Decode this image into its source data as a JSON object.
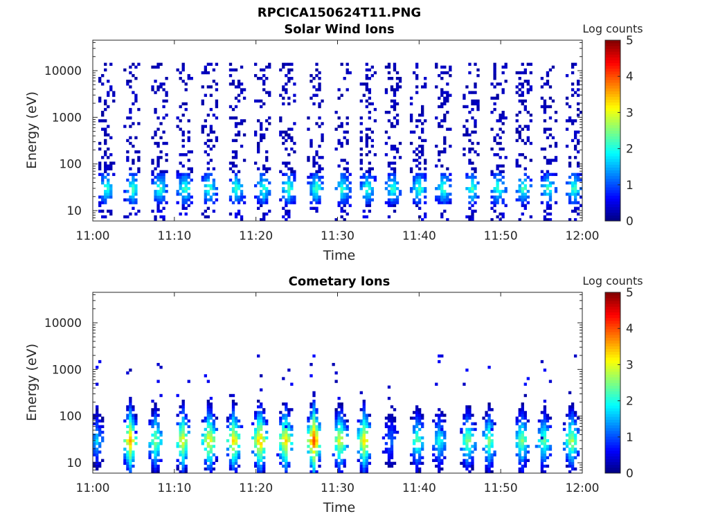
{
  "figure_title": "RPCICA150624T11.PNG",
  "chart_data": [
    {
      "type": "heatmap",
      "title": "Solar Wind Ions",
      "xlabel": "Time",
      "ylabel": "Energy (eV)",
      "x_tick_labels": [
        "11:00",
        "11:10",
        "11:20",
        "11:30",
        "11:40",
        "11:50",
        "12:00"
      ],
      "x_range_minutes": [
        0,
        60
      ],
      "y_scale": "log",
      "y_tick_values": [
        10,
        100,
        1000,
        10000
      ],
      "y_tick_labels": [
        "10",
        "100",
        "1000",
        "10000"
      ],
      "y_range_eV": [
        6,
        45000
      ],
      "colorbar": {
        "label": "Log counts",
        "range": [
          0,
          5
        ],
        "ticks": [
          "0",
          "1",
          "2",
          "3",
          "4",
          "5"
        ],
        "colormap": "jet"
      },
      "bursts_minute": [
        1.7,
        4.9,
        8.2,
        11.3,
        14.3,
        17.6,
        20.9,
        24.0,
        27.4,
        30.6,
        33.7,
        36.8,
        40.0,
        43.0,
        46.5,
        49.7,
        52.8,
        55.8,
        59.0
      ],
      "core_energy_eV": 30,
      "core_peak_log_counts": 2.2,
      "high_energy_extent_eV": 15000
    },
    {
      "type": "heatmap",
      "title": "Cometary Ions",
      "xlabel": "Time",
      "ylabel": "Energy (eV)",
      "x_tick_labels": [
        "11:00",
        "11:10",
        "11:20",
        "11:30",
        "11:40",
        "11:50",
        "12:00"
      ],
      "x_range_minutes": [
        0,
        60
      ],
      "y_scale": "log",
      "y_tick_values": [
        10,
        100,
        1000,
        10000
      ],
      "y_tick_labels": [
        "10",
        "100",
        "1000",
        "10000"
      ],
      "y_range_eV": [
        6,
        45000
      ],
      "colorbar": {
        "label": "Log counts",
        "range": [
          0,
          5
        ],
        "ticks": [
          "0",
          "1",
          "2",
          "3",
          "4",
          "5"
        ],
        "colormap": "jet"
      },
      "bursts_minute": [
        0.5,
        4.6,
        7.7,
        11.0,
        14.3,
        17.3,
        20.5,
        23.6,
        27.1,
        30.3,
        33.3,
        36.5,
        39.8,
        42.5,
        46.0,
        48.6,
        52.6,
        55.3,
        58.7
      ],
      "burst_peak_log_counts": [
        1.6,
        3.5,
        2.6,
        3.2,
        3.3,
        3.3,
        3.6,
        3.4,
        4.0,
        3.1,
        3.3,
        1.2,
        2.4,
        2.0,
        2.6,
        2.5,
        2.6,
        2.4,
        2.8
      ],
      "core_energy_eV": 30,
      "high_energy_extent_eV": 2000
    }
  ]
}
